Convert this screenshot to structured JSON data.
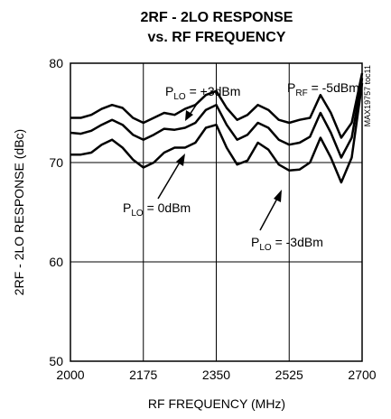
{
  "chart_data": {
    "type": "line",
    "title": "2RF - 2LO RESPONSE",
    "subtitle": "vs. RF FREQUENCY",
    "x_label": "RF FREQUENCY (MHz)",
    "y_label": "2RF - 2LO RESPONSE (dBc)",
    "chart_id": "MAX19757 toc11",
    "xlim": [
      2000,
      2700
    ],
    "xticks": [
      2000,
      2175,
      2350,
      2525,
      2700
    ],
    "ylim": [
      50,
      80
    ],
    "yticks": [
      50,
      60,
      70,
      80
    ],
    "grid": true,
    "x": [
      2000,
      2025,
      2050,
      2075,
      2100,
      2125,
      2150,
      2175,
      2200,
      2225,
      2250,
      2275,
      2300,
      2325,
      2350,
      2375,
      2400,
      2425,
      2450,
      2475,
      2500,
      2525,
      2550,
      2575,
      2600,
      2625,
      2650,
      2675,
      2700
    ],
    "series": [
      {
        "color": "#000000",
        "values": [
          74.5,
          74.5,
          74.8,
          75.4,
          75.8,
          75.5,
          74.5,
          74.0,
          74.5,
          75.0,
          74.8,
          75.4,
          75.8,
          76.8,
          77.2,
          75.5,
          74.3,
          74.8,
          75.8,
          75.3,
          74.3,
          74.0,
          74.3,
          74.5,
          76.8,
          75.0,
          72.5,
          74.0,
          79.0
        ]
      },
      {
        "color": "#000000",
        "values": [
          73.0,
          72.9,
          73.2,
          73.8,
          74.3,
          73.8,
          72.8,
          72.3,
          72.8,
          73.4,
          73.3,
          73.5,
          74.0,
          75.3,
          75.8,
          73.8,
          72.3,
          72.8,
          74.0,
          73.5,
          72.3,
          71.8,
          72.0,
          72.6,
          75.0,
          73.0,
          70.5,
          72.5,
          78.5
        ]
      },
      {
        "color": "#000000",
        "values": [
          70.8,
          70.8,
          71.0,
          71.8,
          72.3,
          71.5,
          70.3,
          69.5,
          70.0,
          71.0,
          71.5,
          71.5,
          72.0,
          73.5,
          73.8,
          71.5,
          69.8,
          70.2,
          72.0,
          71.3,
          69.8,
          69.2,
          69.3,
          70.0,
          72.5,
          70.5,
          68.0,
          70.5,
          78.0
        ]
      }
    ],
    "annotations": [
      {
        "base": "P",
        "sub": "LO",
        "text": " = +3dBm"
      },
      {
        "base": "P",
        "sub": "RF",
        "text": " = -5dBm"
      },
      {
        "base": "P",
        "sub": "LO",
        "text": " = 0dBm"
      },
      {
        "base": "P",
        "sub": "LO",
        "text": " = -3dBm"
      }
    ]
  }
}
